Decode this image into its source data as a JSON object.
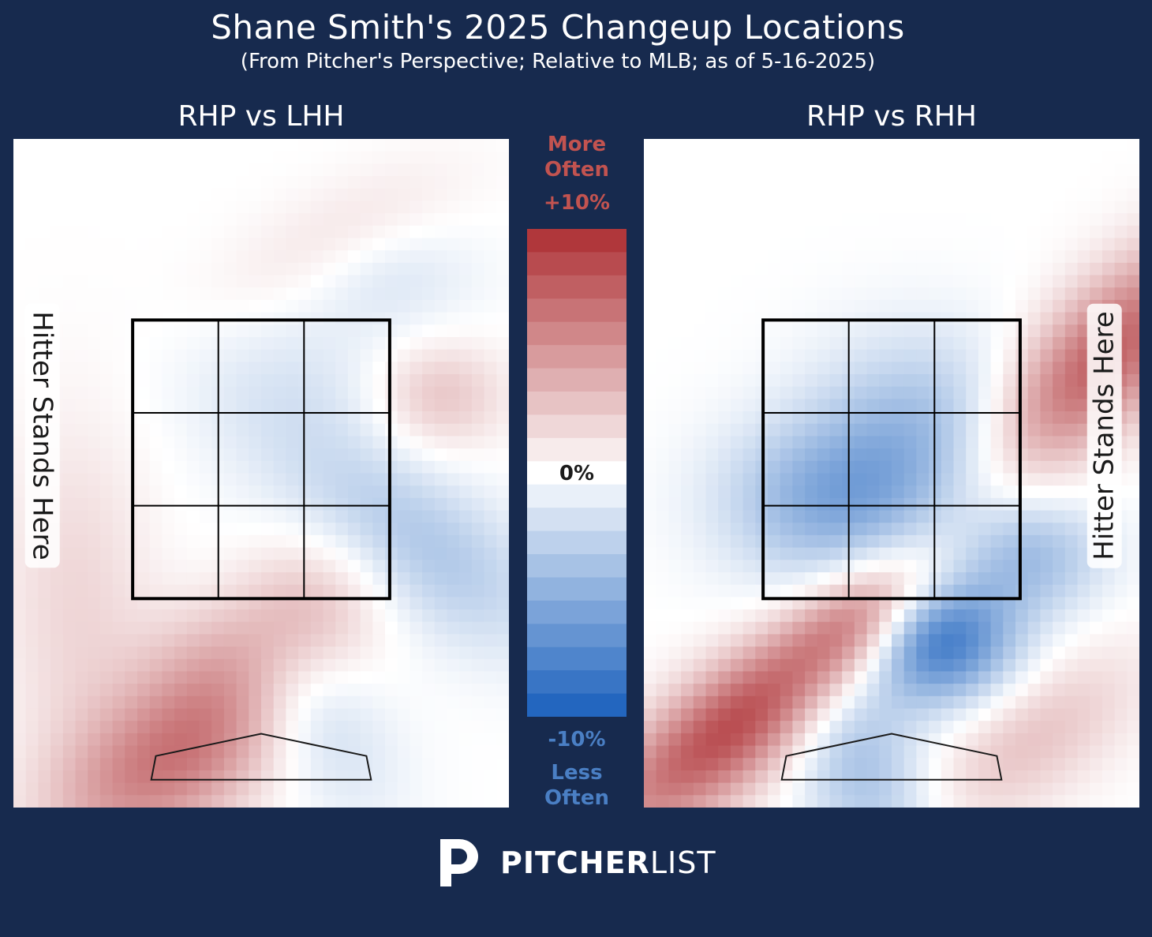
{
  "title": "Shane Smith's 2025 Changeup Locations",
  "subtitle": "(From Pitcher's Perspective; Relative to MLB; as of 5-16-2025)",
  "colorbar": {
    "top_label_line1": "More",
    "top_label_line2": "Often",
    "max_label": "+10%",
    "mid_label": "0%",
    "min_label": "-10%",
    "bottom_label_line1": "Less",
    "bottom_label_line2": "Often"
  },
  "logo": {
    "bold": "PITCHER",
    "light": "LIST"
  },
  "colors": {
    "background": "#172a4e",
    "more_often": "#b0373b",
    "less_often": "#2366bf"
  },
  "chart_data": [
    {
      "type": "heatmap",
      "title": "RHP vs LHH",
      "annotation": "Hitter Stands Here",
      "annotation_side": "left",
      "value_range": [
        -10,
        10
      ],
      "units": "%",
      "hotspots": [
        {
          "x": -0.6,
          "y": 0.3,
          "value": 6,
          "sx": 0.6,
          "sy": 0.35,
          "rot": 35
        },
        {
          "x": 0.0,
          "y": 1.2,
          "value": 5,
          "sx": 0.6,
          "sy": 0.35,
          "rot": 40
        },
        {
          "x": -1.2,
          "y": 1.5,
          "value": 2,
          "sx": 0.35,
          "sy": 0.9,
          "rot": 0
        },
        {
          "x": 1.15,
          "y": 2.95,
          "value": 3,
          "sx": 0.3,
          "sy": 0.28,
          "rot": 0
        },
        {
          "x": 0.5,
          "y": 4.1,
          "value": 1.5,
          "sx": 0.6,
          "sy": 0.25,
          "rot": 30
        },
        {
          "x": 1.0,
          "y": 1.9,
          "value": -4,
          "sx": 0.35,
          "sy": 0.7,
          "rot": 50
        },
        {
          "x": 0.25,
          "y": 0.8,
          "value": -3,
          "sx": 0.3,
          "sy": 0.6,
          "rot": 30
        },
        {
          "x": 0.2,
          "y": 3.0,
          "value": -1.5,
          "sx": 0.5,
          "sy": 0.4,
          "rot": 0
        },
        {
          "x": 0.85,
          "y": 3.8,
          "value": -1.5,
          "sx": 0.4,
          "sy": 0.3,
          "rot": 0
        }
      ]
    },
    {
      "type": "heatmap",
      "title": "RHP vs RHH",
      "annotation": "Hitter Stands Here",
      "annotation_side": "right",
      "value_range": [
        -10,
        10
      ],
      "units": "%",
      "hotspots": [
        {
          "x": -1.0,
          "y": 0.6,
          "value": 9,
          "sx": 0.85,
          "sy": 0.28,
          "rot": 42
        },
        {
          "x": -0.15,
          "y": 1.4,
          "value": 5,
          "sx": 0.4,
          "sy": 0.22,
          "rot": 40
        },
        {
          "x": 1.35,
          "y": 3.2,
          "value": 8,
          "sx": 0.75,
          "sy": 0.3,
          "rot": 50
        },
        {
          "x": 0.9,
          "y": 0.5,
          "value": 3,
          "sx": 0.6,
          "sy": 0.3,
          "rot": 40
        },
        {
          "x": 0.3,
          "y": 1.2,
          "value": -9,
          "sx": 0.35,
          "sy": 0.32,
          "rot": 0
        },
        {
          "x": -0.4,
          "y": 2.2,
          "value": -5,
          "sx": 0.5,
          "sy": 0.4,
          "rot": 0
        },
        {
          "x": 0.2,
          "y": 2.7,
          "value": -4,
          "sx": 0.5,
          "sy": 0.5,
          "rot": 0
        },
        {
          "x": -0.2,
          "y": 0.3,
          "value": -4,
          "sx": 0.3,
          "sy": 0.6,
          "rot": 20
        },
        {
          "x": 0.9,
          "y": 1.8,
          "value": -4,
          "sx": 0.35,
          "sy": 0.3,
          "rot": 0
        }
      ]
    }
  ]
}
